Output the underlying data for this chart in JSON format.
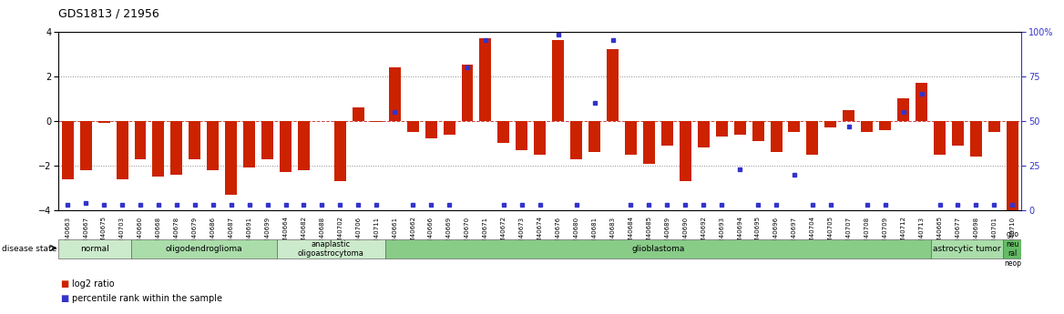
{
  "title": "GDS1813 / 21956",
  "samples": [
    "GSM40663",
    "GSM40667",
    "GSM40675",
    "GSM40703",
    "GSM40660",
    "GSM40668",
    "GSM40678",
    "GSM40679",
    "GSM40686",
    "GSM40687",
    "GSM40691",
    "GSM40699",
    "GSM40664",
    "GSM40682",
    "GSM40688",
    "GSM40702",
    "GSM40706",
    "GSM40711",
    "GSM40661",
    "GSM40662",
    "GSM40666",
    "GSM40669",
    "GSM40670",
    "GSM40671",
    "GSM40672",
    "GSM40673",
    "GSM40674",
    "GSM40676",
    "GSM40680",
    "GSM40681",
    "GSM40683",
    "GSM40684",
    "GSM40685",
    "GSM40689",
    "GSM40690",
    "GSM40692",
    "GSM40693",
    "GSM40694",
    "GSM40695",
    "GSM40696",
    "GSM40697",
    "GSM40704",
    "GSM40705",
    "GSM40707",
    "GSM40708",
    "GSM40709",
    "GSM40712",
    "GSM40713",
    "GSM40665",
    "GSM40677",
    "GSM40698",
    "GSM40701",
    "GSM40710"
  ],
  "log2_ratio": [
    -2.6,
    -2.2,
    -0.1,
    -2.6,
    -1.7,
    -2.5,
    -2.4,
    -1.7,
    -2.2,
    -3.3,
    -2.1,
    -1.7,
    -2.3,
    -2.2,
    0.0,
    -2.7,
    0.6,
    -0.05,
    2.4,
    -0.5,
    -0.8,
    -0.6,
    2.5,
    3.7,
    -1.0,
    -1.3,
    -1.5,
    3.6,
    -1.7,
    -1.4,
    3.2,
    -1.5,
    -1.9,
    -1.1,
    -2.7,
    -1.2,
    -0.7,
    -0.6,
    -0.9,
    -1.4,
    -0.5,
    -1.5,
    -0.3,
    0.5,
    -0.5,
    -0.4,
    1.0,
    1.7,
    -1.5,
    -1.1,
    -1.6,
    -0.5,
    -4.0
  ],
  "percentile": [
    3,
    4,
    3,
    3,
    3,
    3,
    3,
    3,
    3,
    3,
    3,
    3,
    3,
    3,
    3,
    3,
    3,
    3,
    55,
    3,
    3,
    3,
    80,
    95,
    3,
    3,
    3,
    98,
    3,
    60,
    95,
    3,
    3,
    3,
    3,
    3,
    3,
    23,
    3,
    3,
    20,
    3,
    3,
    47,
    3,
    3,
    55,
    65,
    3,
    3,
    3,
    3,
    3
  ],
  "disease_groups": [
    {
      "label": "normal",
      "start": 0,
      "end": 3,
      "color": "#cceacc"
    },
    {
      "label": "oligodendroglioma",
      "start": 4,
      "end": 11,
      "color": "#aaddaa"
    },
    {
      "label": "anaplastic\noligoastrocytoma",
      "start": 12,
      "end": 17,
      "color": "#cceacc"
    },
    {
      "label": "glioblastoma",
      "start": 18,
      "end": 47,
      "color": "#88cc88"
    },
    {
      "label": "astrocytic tumor",
      "start": 48,
      "end": 51,
      "color": "#aaddaa"
    },
    {
      "label": "glio\nneu\nral\nneop",
      "start": 52,
      "end": 52,
      "color": "#66bb66"
    }
  ],
  "ylim": [
    -4,
    4
  ],
  "yticks": [
    -4,
    -2,
    0,
    2,
    4
  ],
  "right_yticks": [
    0,
    25,
    50,
    75,
    100
  ],
  "right_ytick_labels": [
    "0",
    "25",
    "50",
    "75",
    "100%"
  ],
  "bar_color": "#cc2200",
  "dot_color": "#3333cc",
  "zero_line_color": "#cc4444",
  "grid_color": "#888888",
  "background_color": "#ffffff"
}
